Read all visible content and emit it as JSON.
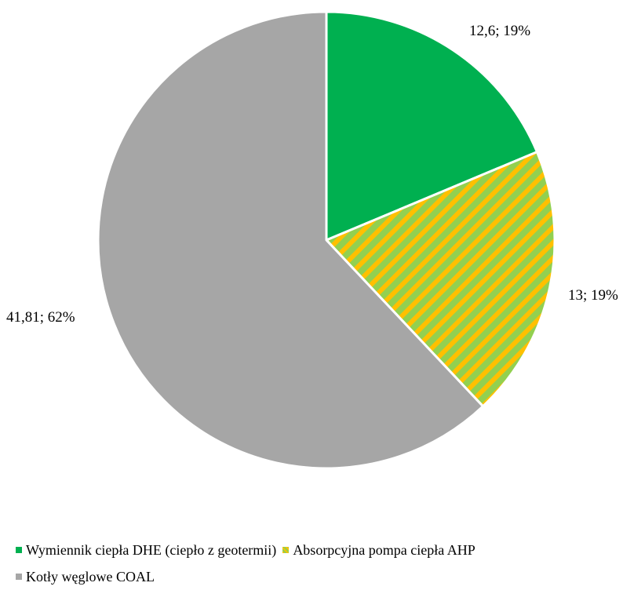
{
  "chart_data": {
    "type": "pie",
    "title": "",
    "slices": [
      {
        "name": "Wymiennik ciepła DHE (ciepło z geotermii)",
        "value": 12.6,
        "label": "12,6; 19%",
        "color": "#00b050",
        "pattern": "solid"
      },
      {
        "name": "Absorpcyjna pompa ciepła AHP",
        "value": 13,
        "label": "13; 19%",
        "color": "#92d050",
        "pattern": "diagonal-stripes",
        "stripe_color": "#ffc000"
      },
      {
        "name": "Kotły węglowe COAL",
        "value": 41.81,
        "label": "41,81; 62%",
        "color": "#a6a6a6",
        "pattern": "solid"
      }
    ],
    "start_angle": "12 o'clock",
    "direction": "clockwise",
    "legend_position": "bottom"
  }
}
